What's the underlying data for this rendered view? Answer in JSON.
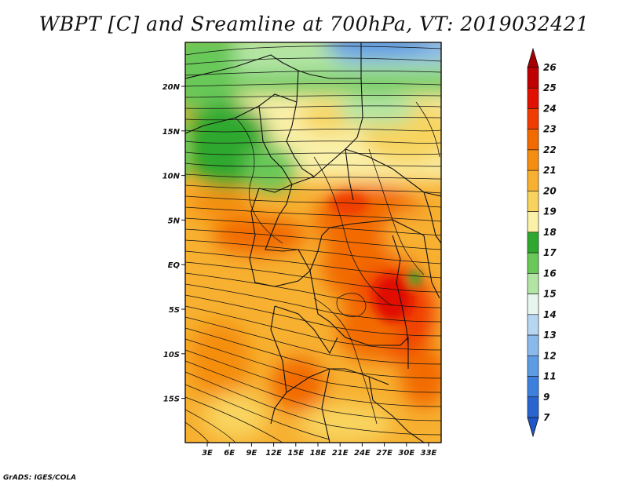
{
  "title": "WBPT [C] and Sreamline at 700hPa, VT: 2019032421",
  "credit": "GrADS: IGES/COLA",
  "map": {
    "lat_labels": [
      "20N",
      "15N",
      "10N",
      "5N",
      "EQ",
      "5S",
      "10S",
      "15S"
    ],
    "lon_labels": [
      "3E",
      "6E",
      "9E",
      "12E",
      "15E",
      "18E",
      "21E",
      "24E",
      "27E",
      "30E",
      "33E"
    ]
  },
  "colorbar": {
    "labels": [
      "26",
      "25",
      "24",
      "23",
      "22",
      "21",
      "20",
      "19",
      "18",
      "17",
      "16",
      "15",
      "14",
      "13",
      "12",
      "11",
      "9",
      "7"
    ],
    "colors": [
      "#a50000",
      "#c00000",
      "#e11000",
      "#f03c00",
      "#f26a00",
      "#f58e10",
      "#f7b030",
      "#f8d45e",
      "#faf0a8",
      "#2fa82f",
      "#68c858",
      "#b2e5a3",
      "#e6f6ee",
      "#b6d6f2",
      "#8ab9ec",
      "#5d9be4",
      "#3d7fdc",
      "#2a64d0",
      "#1f55c8"
    ]
  }
}
